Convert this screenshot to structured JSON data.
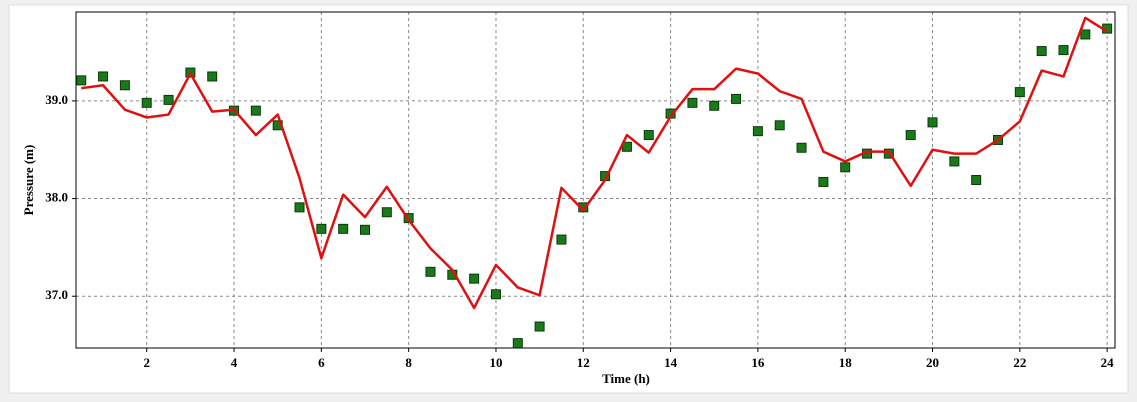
{
  "chart_data": {
    "type": "line",
    "x_label": "Time (h)",
    "y_label": "Pressure (m)",
    "x": [
      0.5,
      1,
      1.5,
      2,
      2.5,
      3,
      3.5,
      4,
      4.5,
      5,
      5.5,
      6,
      6.5,
      7,
      7.5,
      8,
      8.5,
      9,
      9.5,
      10,
      10.5,
      11,
      11.5,
      12,
      12.5,
      13,
      13.5,
      14,
      14.5,
      15,
      15.5,
      16,
      16.5,
      17,
      17.5,
      18,
      18.5,
      19,
      19.5,
      20,
      20.5,
      21,
      21.5,
      22,
      22.5,
      23,
      23.5,
      24
    ],
    "series": [
      {
        "style": "markers",
        "color": "#1a7a1a",
        "values": [
          39.21,
          39.25,
          39.16,
          38.98,
          39.01,
          39.29,
          39.25,
          38.9,
          38.9,
          38.75,
          37.91,
          37.69,
          37.69,
          37.68,
          37.86,
          37.8,
          37.25,
          37.22,
          37.18,
          37.02,
          36.52,
          36.69,
          37.58,
          37.91,
          38.23,
          38.53,
          38.65,
          38.87,
          38.98,
          38.95,
          39.02,
          38.69,
          38.75,
          38.52,
          38.17,
          38.32,
          38.46,
          38.46,
          38.65,
          38.78,
          38.38,
          38.19,
          38.6,
          39.09,
          39.51,
          39.52,
          39.68,
          39.74
        ]
      },
      {
        "style": "line",
        "color": "#e01010",
        "values": [
          39.13,
          39.16,
          38.91,
          38.83,
          38.86,
          39.28,
          38.89,
          38.91,
          38.65,
          38.86,
          38.21,
          37.39,
          38.04,
          37.81,
          38.12,
          37.78,
          37.49,
          37.27,
          36.88,
          37.32,
          37.09,
          37.01,
          38.11,
          37.88,
          38.19,
          38.65,
          38.47,
          38.84,
          39.12,
          39.12,
          39.33,
          39.28,
          39.1,
          39.02,
          38.48,
          38.38,
          38.48,
          38.48,
          38.13,
          38.5,
          38.46,
          38.46,
          38.6,
          38.79,
          39.31,
          39.25,
          39.85,
          39.71
        ]
      }
    ],
    "xlim": [
      0.38,
      24.18
    ],
    "ylim": [
      36.47,
      39.91
    ],
    "xticks": [
      2,
      4,
      6,
      8,
      10,
      12,
      14,
      16,
      18,
      20,
      22,
      24
    ],
    "yticks": [
      {
        "value": 37,
        "label": "37.0"
      },
      {
        "value": 38,
        "label": "38.0"
      },
      {
        "value": 39,
        "label": "39.0"
      }
    ],
    "grid": true
  }
}
